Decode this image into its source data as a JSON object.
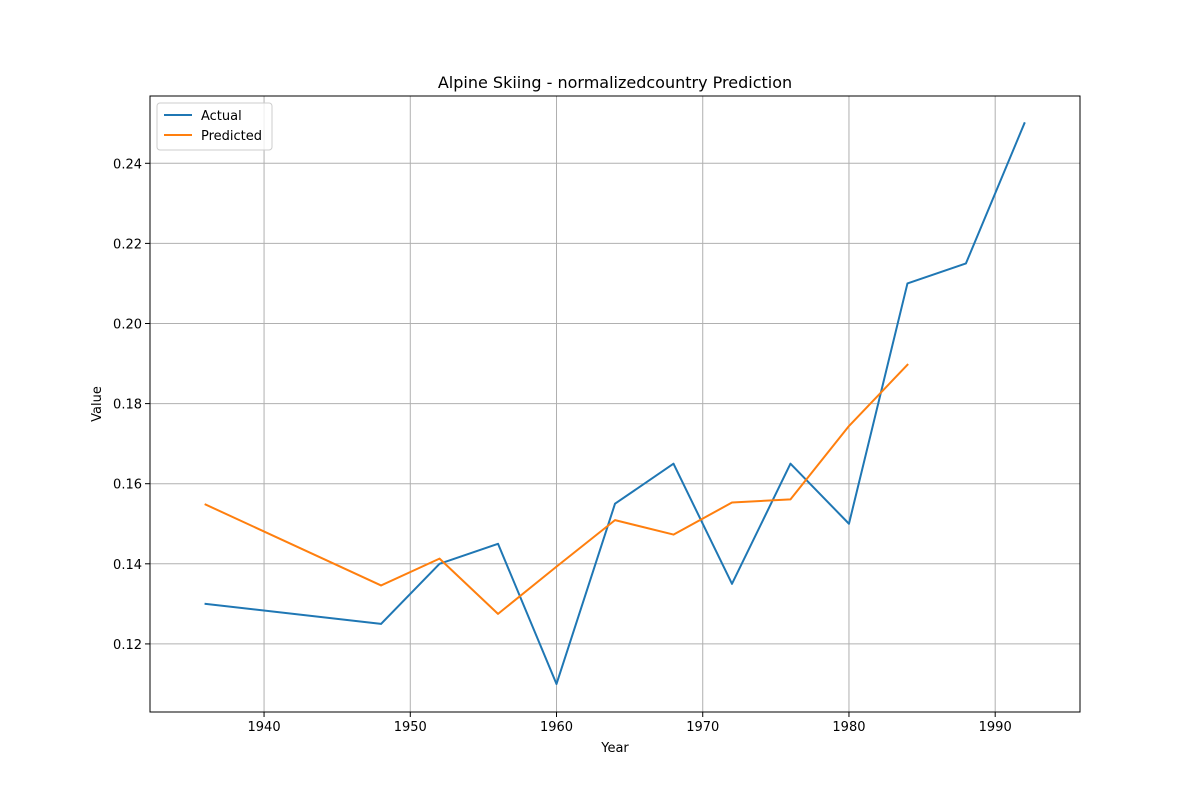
{
  "chart_data": {
    "type": "line",
    "title": "Alpine Skiing - normalizedcountry Prediction",
    "xlabel": "Year",
    "ylabel": "Value",
    "xlim": [
      1932.2,
      1995.8
    ],
    "ylim": [
      0.103,
      0.2568
    ],
    "x_ticks": [
      1940,
      1950,
      1960,
      1970,
      1980,
      1990
    ],
    "y_ticks": [
      0.12,
      0.14,
      0.16,
      0.18,
      0.2,
      0.22,
      0.24
    ],
    "x_tick_labels": [
      "1940",
      "1950",
      "1960",
      "1970",
      "1980",
      "1990"
    ],
    "y_tick_labels": [
      "0.12",
      "0.14",
      "0.16",
      "0.18",
      "0.20",
      "0.22",
      "0.24"
    ],
    "grid": true,
    "legend_position": "top-left",
    "series": [
      {
        "name": "Actual",
        "color": "#1f77b4",
        "x": [
          1936,
          1948,
          1952,
          1956,
          1960,
          1964,
          1968,
          1972,
          1976,
          1980,
          1984,
          1988,
          1992
        ],
        "y": [
          0.13,
          0.125,
          0.14,
          0.145,
          0.11,
          0.155,
          0.165,
          0.135,
          0.165,
          0.15,
          0.21,
          0.215,
          0.25
        ]
      },
      {
        "name": "Predicted",
        "color": "#ff7f0e",
        "x": [
          1936,
          1948,
          1952,
          1956,
          1960,
          1964,
          1968,
          1972,
          1976,
          1980,
          1984
        ],
        "y": [
          0.1548,
          0.1346,
          0.1413,
          0.1275,
          0.1393,
          0.1509,
          0.1473,
          0.1553,
          0.1561,
          0.1744,
          0.1897
        ]
      }
    ]
  }
}
